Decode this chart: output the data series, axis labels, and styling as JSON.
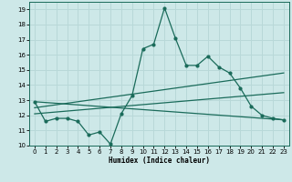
{
  "title": "",
  "xlabel": "Humidex (Indice chaleur)",
  "background_color": "#cde8e8",
  "grid_color": "#b8d8d8",
  "line_color": "#1a6b5a",
  "xlim": [
    -0.5,
    23.5
  ],
  "ylim": [
    10.0,
    19.5
  ],
  "yticks": [
    10,
    11,
    12,
    13,
    14,
    15,
    16,
    17,
    18,
    19
  ],
  "xticks": [
    0,
    1,
    2,
    3,
    4,
    5,
    6,
    7,
    8,
    9,
    10,
    11,
    12,
    13,
    14,
    15,
    16,
    17,
    18,
    19,
    20,
    21,
    22,
    23
  ],
  "series1_x": [
    0,
    1,
    2,
    3,
    4,
    5,
    6,
    7,
    8,
    9,
    10,
    11,
    12,
    13,
    14,
    15,
    16,
    17,
    18,
    19,
    20,
    21,
    22,
    23
  ],
  "series1_y": [
    12.9,
    11.6,
    11.8,
    11.8,
    11.6,
    10.7,
    10.9,
    10.1,
    12.1,
    13.3,
    16.4,
    16.7,
    19.1,
    17.1,
    15.3,
    15.3,
    15.9,
    15.2,
    14.8,
    13.8,
    12.6,
    12.0,
    11.8,
    11.7
  ],
  "series2_x": [
    0,
    23
  ],
  "series2_y": [
    12.1,
    13.5
  ],
  "series3_x": [
    0,
    23
  ],
  "series3_y": [
    12.9,
    11.7
  ],
  "series4_x": [
    0,
    23
  ],
  "series4_y": [
    12.5,
    14.8
  ]
}
